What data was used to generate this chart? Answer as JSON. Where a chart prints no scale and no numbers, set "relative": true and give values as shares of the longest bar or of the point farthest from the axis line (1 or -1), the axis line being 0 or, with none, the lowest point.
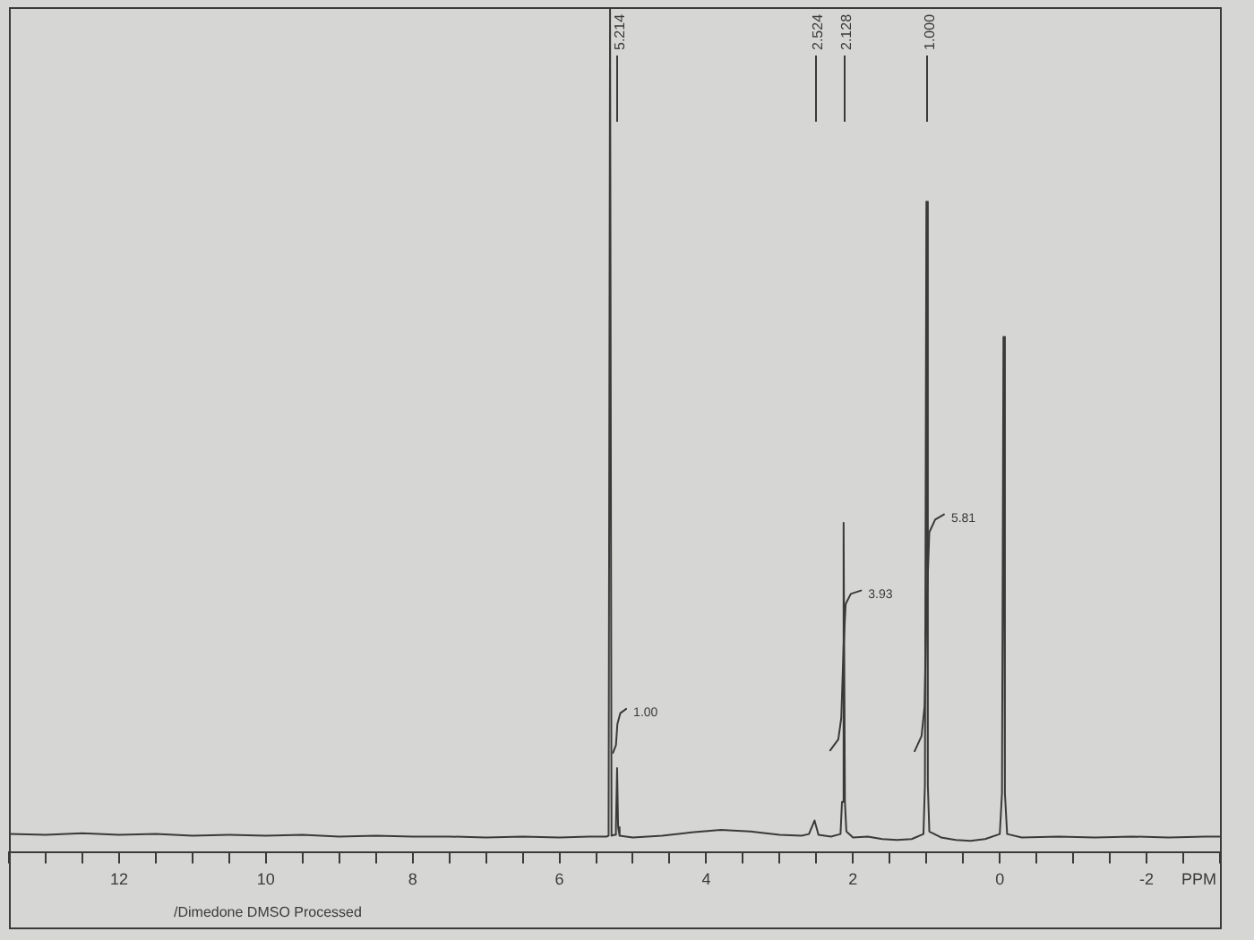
{
  "chart_data": {
    "type": "line",
    "xlabel": "PPM",
    "relative": true,
    "xlim": [
      13.5,
      -3
    ],
    "xticks": [
      {
        "value": 13.5,
        "label": null
      },
      {
        "value": 13,
        "label": null
      },
      {
        "value": 12.5,
        "label": null
      },
      12,
      {
        "value": 11.5,
        "label": null
      },
      {
        "value": 11,
        "label": null
      },
      {
        "value": 10.5,
        "label": null
      },
      10,
      {
        "value": 9.5,
        "label": null
      },
      {
        "value": 9,
        "label": null
      },
      {
        "value": 8.5,
        "label": null
      },
      8,
      {
        "value": 7.5,
        "label": null
      },
      {
        "value": 7,
        "label": null
      },
      {
        "value": 6.5,
        "label": null
      },
      6,
      {
        "value": 5.5,
        "label": null
      },
      {
        "value": 5,
        "label": null
      },
      {
        "value": 4.5,
        "label": null
      },
      4,
      {
        "value": 3.5,
        "label": null
      },
      {
        "value": 3,
        "label": null
      },
      {
        "value": 2.5,
        "label": null
      },
      2,
      {
        "value": 1.5,
        "label": null
      },
      {
        "value": 1,
        "label": null
      },
      {
        "value": 0.5,
        "label": null
      },
      0,
      {
        "value": -0.5,
        "label": null
      },
      {
        "value": -1,
        "label": null
      },
      {
        "value": -1.5,
        "label": null
      },
      -2,
      {
        "value": -2.5,
        "label": null
      },
      {
        "value": -3,
        "label": null
      }
    ],
    "annotations": [
      {
        "text": "5.214",
        "x": 5.214
      },
      {
        "text": "2.524",
        "x": 2.524
      },
      {
        "text": "2.128",
        "x": 2.128
      },
      {
        "text": "1.000",
        "x": 1.0
      },
      {
        "text": "1.00",
        "x": 5.09,
        "y": 0.17
      },
      {
        "text": "3.93",
        "x": 1.89,
        "y": 0.31
      },
      {
        "text": "5.81",
        "x": 0.76,
        "y": 0.4
      },
      "/Dimedone DMSO Processed"
    ],
    "series": [
      {
        "color": "#3a3a3a",
        "x": [
          13.5,
          13.0,
          12.5,
          12.0,
          11.5,
          11.0,
          10.5,
          10.0,
          9.5,
          9.0,
          8.5,
          8.0,
          7.5,
          7.0,
          6.5,
          6.0,
          5.6,
          5.36,
          5.33,
          5.31,
          5.29,
          5.25,
          5.23,
          5.214,
          5.2,
          5.18,
          5.0,
          4.6,
          4.2,
          3.8,
          3.4,
          3.0,
          2.7,
          2.6,
          2.524,
          2.47,
          2.3,
          2.17,
          2.15,
          2.128,
          2.11,
          2.09,
          2.0,
          1.8,
          1.6,
          1.4,
          1.2,
          1.04,
          1.02,
          1.0,
          0.98,
          0.96,
          0.8,
          0.6,
          0.4,
          0.2,
          0.0,
          -0.03,
          -0.05,
          -0.07,
          -0.1,
          -0.3,
          -0.8,
          -1.3,
          -1.8,
          -2.3,
          -2.8,
          -3.0
        ],
        "values": [
          0.022,
          0.021,
          0.023,
          0.021,
          0.022,
          0.02,
          0.021,
          0.02,
          0.021,
          0.019,
          0.02,
          0.019,
          0.019,
          0.018,
          0.019,
          0.018,
          0.019,
          0.019,
          0.02,
          1,
          0.02,
          0.021,
          0.03,
          0.1,
          0.03,
          0.02,
          0.018,
          0.02,
          0.024,
          0.027,
          0.025,
          0.021,
          0.02,
          0.022,
          0.038,
          0.021,
          0.019,
          0.022,
          0.06,
          0.39,
          0.06,
          0.025,
          0.018,
          0.019,
          0.016,
          0.015,
          0.016,
          0.022,
          0.08,
          0.77,
          0.08,
          0.025,
          0.018,
          0.015,
          0.014,
          0.016,
          0.022,
          0.07,
          0.61,
          0.07,
          0.022,
          0.018,
          0.019,
          0.018,
          0.019,
          0.018,
          0.019,
          0.019
        ]
      },
      {
        "color": "#3a3a3a",
        "x": [
          5.27,
          5.23,
          5.21,
          5.17,
          5.09
        ],
        "values": [
          0.118,
          0.127,
          0.152,
          0.165,
          0.17
        ]
      },
      {
        "color": "#3a3a3a",
        "x": [
          2.31,
          2.2,
          2.16,
          2.128,
          2.1,
          2.03,
          1.89
        ],
        "values": [
          0.121,
          0.134,
          0.159,
          0.244,
          0.294,
          0.306,
          0.31
        ]
      },
      {
        "color": "#3a3a3a",
        "x": [
          1.16,
          1.066,
          1.025,
          1.0,
          0.96,
          0.88,
          0.76
        ],
        "values": [
          0.12,
          0.138,
          0.173,
          0.28,
          0.379,
          0.394,
          0.4
        ]
      }
    ]
  }
}
